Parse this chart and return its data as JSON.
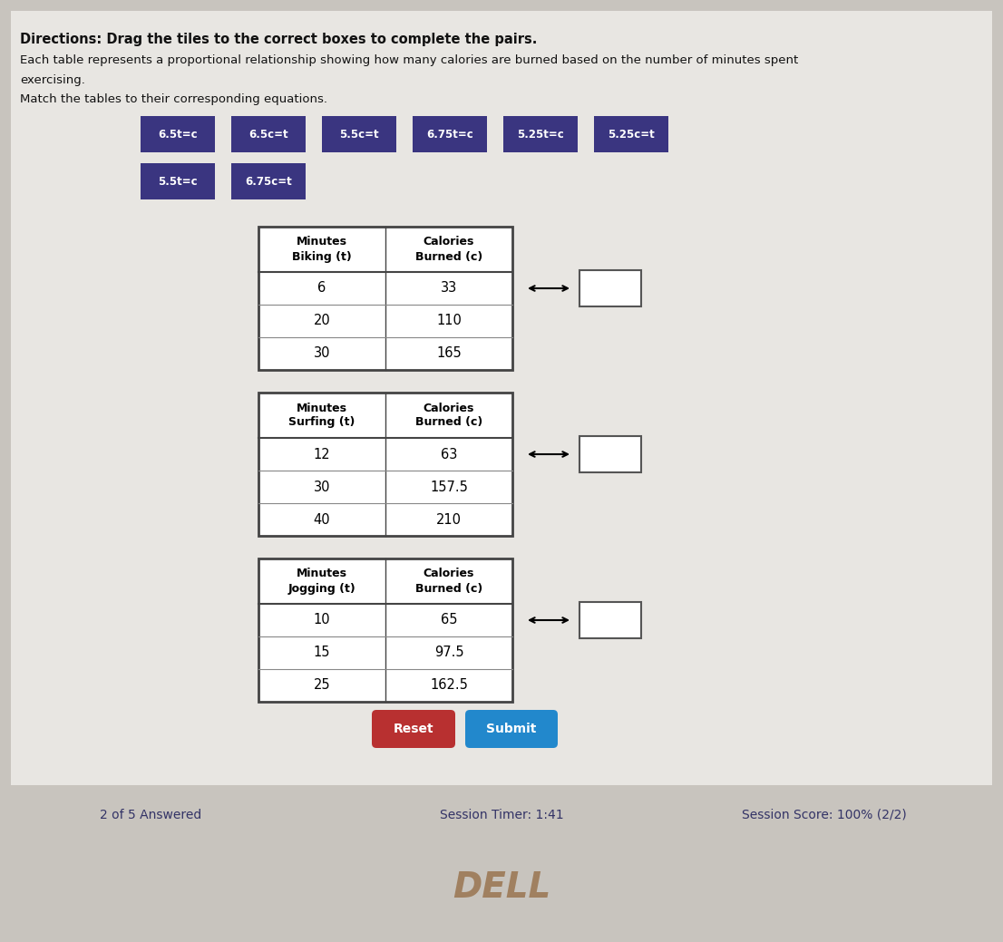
{
  "bg_color": "#c8c4be",
  "content_bg": "#d0ccc8",
  "white_panel": "#e8e6e2",
  "title_line1": "Directions: Drag the tiles to the correct boxes to complete the pairs.",
  "title_line2a": "Each table represents a proportional relationship showing how many calories are burned based on the number of minutes spent",
  "title_line2b": "exercising.",
  "title_line3": "Match the tables to their corresponding equations.",
  "tiles_row1": [
    "6.5t=c",
    "6.5c=t",
    "5.5c=t",
    "6.75t=c",
    "5.25t=c",
    "5.25c=t"
  ],
  "tiles_row2": [
    "5.5t=c",
    "6.75c=t"
  ],
  "tile_bg": "#3a3580",
  "tile_text_color": "#ffffff",
  "tables": [
    {
      "header_col1": "Minutes\nBiking (t)",
      "header_col2": "Calories\nBurned (c)",
      "rows": [
        [
          "6",
          "33"
        ],
        [
          "20",
          "110"
        ],
        [
          "30",
          "165"
        ]
      ]
    },
    {
      "header_col1": "Minutes\nSurfing (t)",
      "header_col2": "Calories\nBurned (c)",
      "rows": [
        [
          "12",
          "63"
        ],
        [
          "30",
          "157.5"
        ],
        [
          "40",
          "210"
        ]
      ]
    },
    {
      "header_col1": "Minutes\nJogging (t)",
      "header_col2": "Calories\nBurned (c)",
      "rows": [
        [
          "10",
          "65"
        ],
        [
          "15",
          "97.5"
        ],
        [
          "25",
          "162.5"
        ]
      ]
    }
  ],
  "reset_color": "#b83030",
  "submit_color": "#2288cc",
  "footer_bar_color": "#dddbd8",
  "footer_text_color": "#333366",
  "footer_texts": [
    "2 of 5 Answered",
    "Session Timer: 1:41",
    "Session Score: 100% (2/2)"
  ],
  "dell_area_color": "#2a2520",
  "dell_text_color": "#a08060",
  "dell_text": "DELL"
}
